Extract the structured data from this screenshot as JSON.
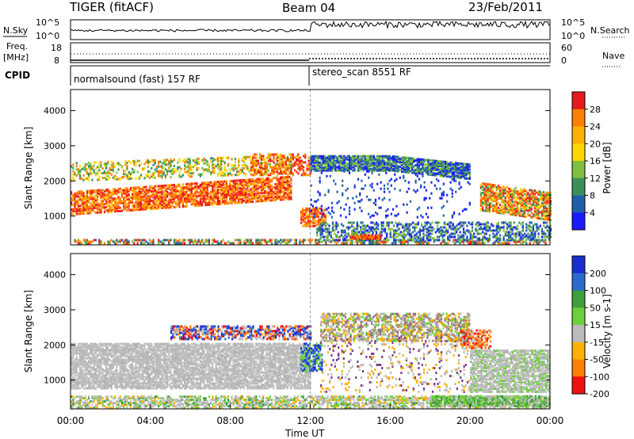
{
  "header": {
    "radar": "TIGER (fitACF)",
    "beam": "Beam 04",
    "date": "23/Feb/2011"
  },
  "top_panels": {
    "n_sky_label": "N.Sky",
    "n_search_label": "N.Search",
    "freq_label_1": "Freq.",
    "freq_label_2": "[MHz]",
    "nave_label": "Nave",
    "cpid_label": "CPID",
    "nsky_ticks": [
      "10^5",
      "10^0"
    ],
    "nsearch_ticks": [
      "10^5",
      "10^0"
    ],
    "freq_ticks": [
      "18",
      "8"
    ],
    "nave_ticks": [
      "60",
      "0"
    ],
    "cpid_segments": [
      {
        "label": "normalsound (fast) 157 RF",
        "start_hour": 0
      },
      {
        "label": "stereo_scan 8551 RF",
        "start_hour": 12
      }
    ]
  },
  "time_axis": {
    "label": "Time UT",
    "ticks": [
      "00:00",
      "04:00",
      "08:00",
      "12:00",
      "16:00",
      "20:00",
      "00:00"
    ]
  },
  "chart_data": [
    {
      "type": "heatmap",
      "name": "power",
      "ylabel": "Slant Range [km]",
      "yticks": [
        1000,
        2000,
        3000,
        4000
      ],
      "ylim": [
        180,
        4600
      ],
      "xlim_hours": [
        0,
        24
      ],
      "colorbar_label": "Power [dB]",
      "colorbar_ticks": [
        "28",
        "24",
        "20",
        "16",
        "12",
        "8",
        "4"
      ],
      "colorbar_colors": [
        "#e41a1c",
        "#ff7f00",
        "#ffb000",
        "#ffd700",
        "#7fbf3f",
        "#3d8f5a",
        "#1f5fa8",
        "#1a1aff"
      ]
    },
    {
      "type": "heatmap",
      "name": "velocity",
      "ylabel": "Slant Range [km]",
      "yticks": [
        1000,
        2000,
        3000,
        4000
      ],
      "ylim": [
        180,
        4600
      ],
      "xlim_hours": [
        0,
        24
      ],
      "colorbar_label": "Velocity [m s-1]",
      "colorbar_ticks": [
        "200",
        "100",
        "50",
        "15",
        "-15",
        "-50",
        "-100",
        "-200"
      ],
      "colorbar_colors": [
        "#1a2fd0",
        "#2a6acb",
        "#3f9f3a",
        "#6ccf3c",
        "#bbbbbb",
        "#ffb000",
        "#ff7f00",
        "#ee1111"
      ]
    }
  ]
}
